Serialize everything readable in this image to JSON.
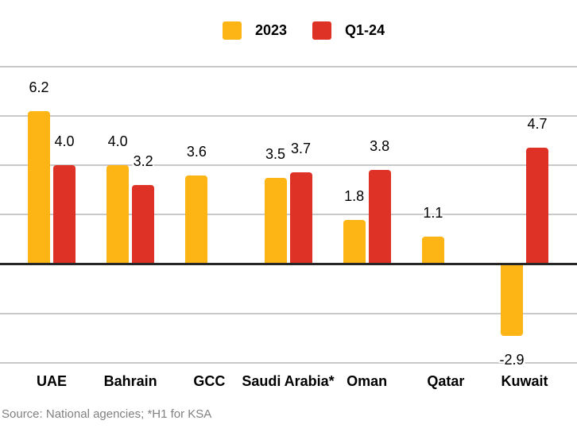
{
  "legend": {
    "items": [
      {
        "label": "2023",
        "color": "#FDB515"
      },
      {
        "label": "Q1-24",
        "color": "#DF3226"
      }
    ]
  },
  "source_note": "Source: National agencies; *H1 for KSA",
  "colors": {
    "series_2023": "#FDB515",
    "series_q1_24": "#DF3226",
    "gridline": "#c9c9c9",
    "zero_axis": "#262626",
    "source_text": "#808080",
    "label_text": "#000000"
  },
  "chart_data": {
    "type": "bar",
    "title": "",
    "categories": [
      "UAE",
      "Bahrain",
      "GCC",
      "Saudi Arabia*",
      "Oman",
      "Qatar",
      "Kuwait"
    ],
    "series": [
      {
        "name": "2023",
        "color": "#FDB515",
        "values": [
          6.2,
          4.0,
          3.6,
          3.5,
          1.8,
          1.1,
          -2.9
        ]
      },
      {
        "name": "Q1-24",
        "color": "#DF3226",
        "values": [
          4.0,
          3.2,
          null,
          3.7,
          3.8,
          null,
          4.7
        ]
      }
    ],
    "xlabel": "",
    "ylabel": "",
    "ylim": [
      -4,
      8
    ],
    "gridline_values": [
      8,
      6,
      4,
      2,
      0,
      -2,
      -4
    ],
    "grid": true,
    "legend_position": "top",
    "value_labels": true,
    "value_label_format": "0.1f",
    "source": "Source: National agencies; *H1 for KSA"
  }
}
